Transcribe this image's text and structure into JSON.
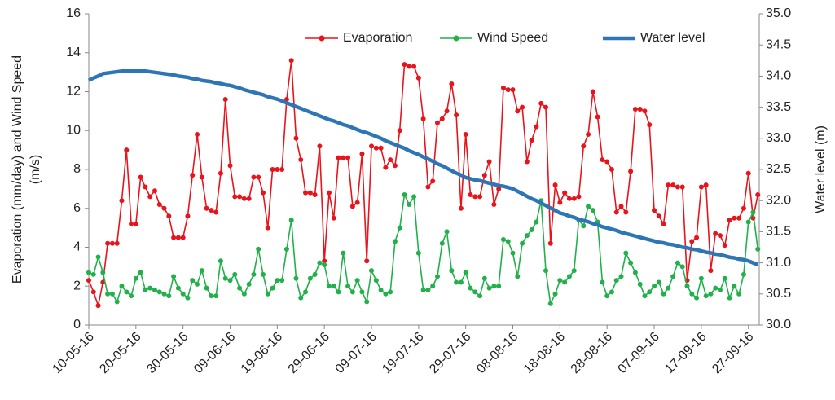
{
  "chart_data": {
    "type": "line",
    "y_label": [
      "Evaporation (mm/day) and Wind Speed",
      "(m/s)"
    ],
    "y2_label": "Water level (m)",
    "categories": [
      "10-05-16",
      null,
      null,
      null,
      null,
      null,
      null,
      null,
      null,
      null,
      "20-05-16",
      null,
      null,
      null,
      null,
      null,
      null,
      null,
      null,
      null,
      "30-05-16",
      null,
      null,
      null,
      null,
      null,
      null,
      null,
      null,
      null,
      "09-06-16",
      null,
      null,
      null,
      null,
      null,
      null,
      null,
      null,
      null,
      "19-06-16",
      null,
      null,
      null,
      null,
      null,
      null,
      null,
      null,
      null,
      "29-06-16",
      null,
      null,
      null,
      null,
      null,
      null,
      null,
      null,
      null,
      "09-07-16",
      null,
      null,
      null,
      null,
      null,
      null,
      null,
      null,
      null,
      "19-07-16",
      null,
      null,
      null,
      null,
      null,
      null,
      null,
      null,
      null,
      "29-07-16",
      null,
      null,
      null,
      null,
      null,
      null,
      null,
      null,
      null,
      "08-08-16",
      null,
      null,
      null,
      null,
      null,
      null,
      null,
      null,
      null,
      "18-08-16",
      null,
      null,
      null,
      null,
      null,
      null,
      null,
      null,
      null,
      "28-08-16",
      null,
      null,
      null,
      null,
      null,
      null,
      null,
      null,
      null,
      "07-09-16",
      null,
      null,
      null,
      null,
      null,
      null,
      null,
      null,
      null,
      "17-09-16",
      null,
      null,
      null,
      null,
      null,
      null,
      null,
      null,
      null,
      "27-09-16",
      null,
      null
    ],
    "ylim": [
      0,
      16
    ],
    "yticks": [
      0,
      2,
      4,
      6,
      8,
      10,
      12,
      14,
      16
    ],
    "y2lim": [
      30,
      35
    ],
    "y2ticks": [
      {
        "value": 30,
        "label": "30.0"
      },
      30.5,
      {
        "value": 31,
        "label": "31.0"
      },
      31.5,
      {
        "value": 32,
        "label": "32.0"
      },
      32.5,
      {
        "value": 33,
        "label": "33.0"
      },
      33.5,
      {
        "value": 34,
        "label": "34.0"
      },
      34.5,
      {
        "value": 35,
        "label": "35.0"
      }
    ],
    "series": [
      {
        "name": "Evaporation",
        "color": "#e8141b",
        "marker": true,
        "values": [
          2.3,
          1.7,
          1.0,
          2.2,
          4.2,
          4.2,
          4.2,
          6.4,
          9.0,
          5.2,
          5.2,
          7.6,
          7.1,
          6.6,
          6.9,
          6.2,
          6.0,
          5.6,
          4.5,
          4.5,
          4.5,
          5.6,
          7.7,
          9.8,
          7.6,
          6.0,
          5.9,
          5.8,
          7.8,
          11.6,
          8.2,
          6.6,
          6.6,
          6.5,
          6.5,
          7.6,
          7.6,
          6.8,
          5.0,
          8.0,
          8.0,
          8.0,
          11.6,
          13.6,
          9.6,
          8.5,
          6.8,
          6.8,
          6.7,
          9.2,
          3.3,
          6.8,
          5.5,
          8.6,
          8.6,
          8.6,
          6.1,
          6.3,
          8.8,
          3.3,
          9.2,
          9.1,
          9.1,
          8.1,
          8.5,
          8.2,
          10.0,
          13.4,
          13.3,
          13.3,
          12.7,
          10.6,
          7.1,
          7.4,
          10.4,
          10.6,
          11.0,
          12.4,
          10.8,
          6.0,
          9.8,
          6.7,
          6.6,
          6.6,
          7.7,
          8.4,
          6.2,
          7.0,
          12.2,
          12.1,
          12.1,
          11.0,
          11.2,
          8.4,
          9.5,
          10.2,
          11.4,
          11.2,
          4.2,
          7.2,
          6.3,
          6.8,
          6.5,
          6.5,
          6.6,
          9.2,
          9.8,
          12.0,
          10.7,
          8.5,
          8.4,
          8.0,
          5.8,
          6.1,
          5.8,
          7.9,
          11.1,
          11.1,
          11.0,
          10.3,
          5.9,
          5.6,
          5.2,
          7.2,
          7.2,
          7.1,
          7.1,
          2.3,
          4.3,
          4.5,
          7.1,
          7.2,
          2.8,
          4.7,
          4.6,
          4.1,
          5.4,
          5.5,
          5.5,
          6.0,
          7.8,
          5.5,
          6.7
        ]
      },
      {
        "name": "Wind Speed",
        "color": "#22b04b",
        "marker": true,
        "values": [
          2.7,
          2.6,
          3.5,
          2.7,
          1.6,
          1.6,
          1.2,
          2.0,
          1.7,
          1.5,
          2.4,
          2.7,
          1.8,
          1.9,
          1.8,
          1.7,
          1.6,
          1.5,
          2.5,
          1.9,
          1.6,
          1.4,
          2.3,
          2.1,
          2.8,
          1.9,
          1.5,
          1.5,
          3.3,
          2.4,
          2.3,
          2.6,
          1.9,
          1.6,
          2.1,
          2.6,
          3.9,
          2.6,
          1.6,
          1.9,
          2.3,
          2.3,
          3.9,
          5.4,
          2.4,
          1.4,
          1.7,
          2.4,
          2.6,
          3.2,
          3.1,
          2.0,
          2.0,
          1.7,
          3.7,
          2.0,
          1.7,
          2.3,
          1.7,
          1.2,
          2.8,
          2.3,
          1.8,
          1.6,
          1.7,
          4.3,
          5.0,
          6.7,
          6.2,
          6.6,
          3.7,
          1.8,
          1.8,
          2.0,
          2.5,
          4.2,
          4.8,
          2.8,
          2.2,
          2.2,
          2.7,
          1.9,
          1.7,
          1.5,
          2.4,
          1.9,
          2.0,
          2.0,
          4.4,
          4.3,
          3.7,
          2.5,
          4.2,
          4.6,
          4.9,
          5.3,
          6.4,
          2.8,
          1.1,
          1.6,
          2.3,
          2.2,
          2.5,
          2.8,
          5.4,
          5.1,
          6.1,
          5.9,
          5.3,
          2.2,
          1.5,
          1.7,
          2.3,
          2.5,
          3.7,
          3.2,
          2.7,
          2.1,
          1.5,
          1.7,
          2.0,
          2.2,
          1.6,
          1.9,
          2.5,
          3.2,
          3.0,
          2.0,
          1.6,
          1.4,
          2.4,
          1.5,
          1.6,
          1.9,
          1.8,
          2.4,
          1.4,
          2.0,
          1.6,
          2.6,
          5.3,
          5.8,
          3.9
        ]
      },
      {
        "name": "Water level",
        "color": "#2e75b6",
        "marker": false,
        "axis": "y2",
        "values": [
          33.93,
          33.97,
          34.0,
          34.04,
          34.05,
          34.06,
          34.07,
          34.08,
          34.08,
          34.08,
          34.08,
          34.08,
          34.08,
          34.07,
          34.06,
          34.05,
          34.04,
          34.03,
          34.02,
          34.0,
          33.99,
          33.98,
          33.96,
          33.95,
          33.93,
          33.92,
          33.91,
          33.89,
          33.88,
          33.86,
          33.85,
          33.83,
          33.81,
          33.78,
          33.76,
          33.74,
          33.72,
          33.7,
          33.67,
          33.65,
          33.63,
          33.6,
          33.57,
          33.54,
          33.51,
          33.48,
          33.45,
          33.42,
          33.39,
          33.36,
          33.33,
          33.3,
          33.28,
          33.25,
          33.22,
          33.2,
          33.17,
          33.14,
          33.11,
          33.09,
          33.06,
          33.03,
          33.0,
          32.96,
          32.93,
          32.9,
          32.87,
          32.84,
          32.8,
          32.77,
          32.74,
          32.7,
          32.67,
          32.63,
          32.59,
          32.56,
          32.52,
          32.48,
          32.44,
          32.41,
          32.37,
          32.35,
          32.33,
          32.32,
          32.3,
          32.28,
          32.26,
          32.24,
          32.23,
          32.21,
          32.19,
          32.15,
          32.11,
          32.07,
          32.03,
          32.0,
          31.96,
          31.92,
          31.88,
          31.84,
          31.8,
          31.78,
          31.75,
          31.73,
          31.7,
          31.68,
          31.66,
          31.63,
          31.61,
          31.58,
          31.56,
          31.54,
          31.52,
          31.49,
          31.47,
          31.45,
          31.43,
          31.41,
          31.39,
          31.37,
          31.35,
          31.33,
          31.32,
          31.3,
          31.29,
          31.27,
          31.25,
          31.24,
          31.22,
          31.21,
          31.19,
          31.17,
          31.16,
          31.14,
          31.13,
          31.11,
          31.09,
          31.08,
          31.06,
          31.05,
          31.03,
          31.0,
          30.97
        ]
      }
    ],
    "grid": false,
    "legend": "top-right"
  }
}
